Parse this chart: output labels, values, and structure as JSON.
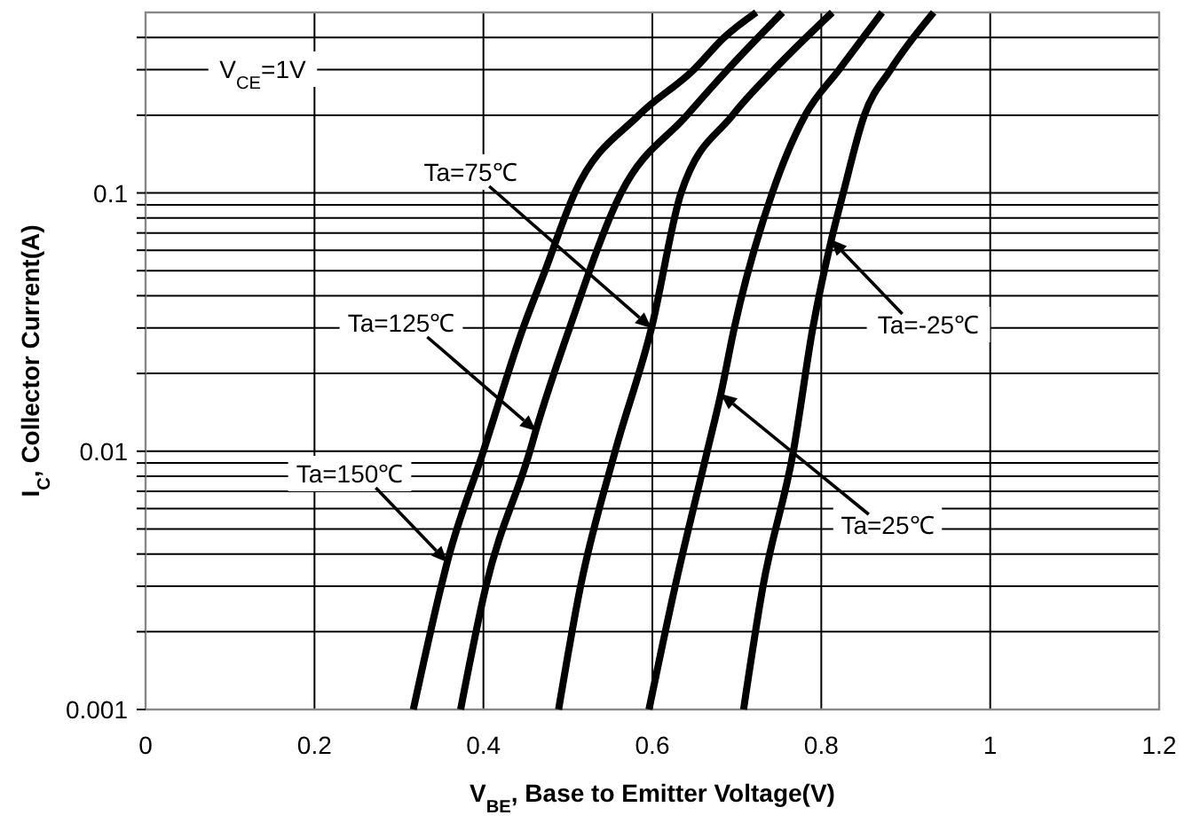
{
  "chart_data": {
    "type": "line",
    "xlabel": "V$_{BE}$, Base to Emitter Voltage(V)",
    "ylabel": "I$_{C}$, Collector Current(A)",
    "log": "y",
    "grid": true,
    "marker": "none",
    "line_style": "solid",
    "xlim": [
      0,
      1.2
    ],
    "xticks": [
      0,
      0.2,
      0.4,
      0.6,
      0.8,
      1,
      1.2
    ],
    "ylim": [
      0.001,
      0.5
    ],
    "yticks": [
      0.001,
      {
        "value": 0.002,
        "label": null
      },
      {
        "value": 0.003,
        "label": null
      },
      {
        "value": 0.004,
        "label": null
      },
      {
        "value": 0.005,
        "label": null
      },
      {
        "value": 0.006,
        "label": null
      },
      {
        "value": 0.007,
        "label": null
      },
      {
        "value": 0.008,
        "label": null
      },
      {
        "value": 0.009,
        "label": null
      },
      0.01,
      {
        "value": 0.02,
        "label": null
      },
      {
        "value": 0.03,
        "label": null
      },
      {
        "value": 0.04,
        "label": null
      },
      {
        "value": 0.05,
        "label": null
      },
      {
        "value": 0.06,
        "label": null
      },
      {
        "value": 0.07,
        "label": null
      },
      {
        "value": 0.08,
        "label": null
      },
      {
        "value": 0.09,
        "label": null
      },
      0.1,
      {
        "value": 0.2,
        "label": null
      },
      {
        "value": 0.3,
        "label": null
      },
      {
        "value": 0.4,
        "label": null
      }
    ],
    "series": [
      {
        "color": "#000000",
        "x": [
          0.317,
          0.35,
          0.357,
          0.4,
          0.447,
          0.473,
          0.508,
          0.584,
          0.649,
          0.685,
          0.723
        ],
        "values": [
          0.001,
          0.003,
          0.0037,
          0.01,
          0.03,
          0.05,
          0.1,
          0.2,
          0.3,
          0.4,
          0.5
        ]
      },
      {
        "color": "#000000",
        "x": [
          0.373,
          0.403,
          0.455,
          0.462,
          0.502,
          0.563,
          0.641,
          0.689,
          0.754
        ],
        "values": [
          0.001,
          0.003,
          0.01,
          0.012,
          0.03,
          0.1,
          0.2,
          0.3,
          0.5
        ]
      },
      {
        "color": "#000000",
        "x": [
          0.489,
          0.515,
          0.556,
          0.599,
          0.634,
          0.695,
          0.744,
          0.813
        ],
        "values": [
          0.001,
          0.003,
          0.01,
          0.03,
          0.1,
          0.2,
          0.3,
          0.5
        ]
      },
      {
        "color": "#000000",
        "x": [
          0.596,
          0.627,
          0.665,
          0.681,
          0.697,
          0.742,
          0.781,
          0.821,
          0.872
        ],
        "values": [
          0.001,
          0.003,
          0.01,
          0.0166,
          0.03,
          0.1,
          0.2,
          0.3,
          0.5
        ]
      },
      {
        "color": "#000000",
        "x": [
          0.708,
          0.731,
          0.767,
          0.79,
          0.812,
          0.826,
          0.851,
          0.882,
          0.933
        ],
        "values": [
          0.001,
          0.003,
          0.01,
          0.03,
          0.066,
          0.1,
          0.2,
          0.3,
          0.5
        ]
      }
    ],
    "annotations": [
      "V$_{CE}$=1V",
      "Ta=75℃",
      "Ta=125℃",
      "Ta=150℃",
      "Ta=-25℃",
      "Ta=25℃"
    ]
  }
}
